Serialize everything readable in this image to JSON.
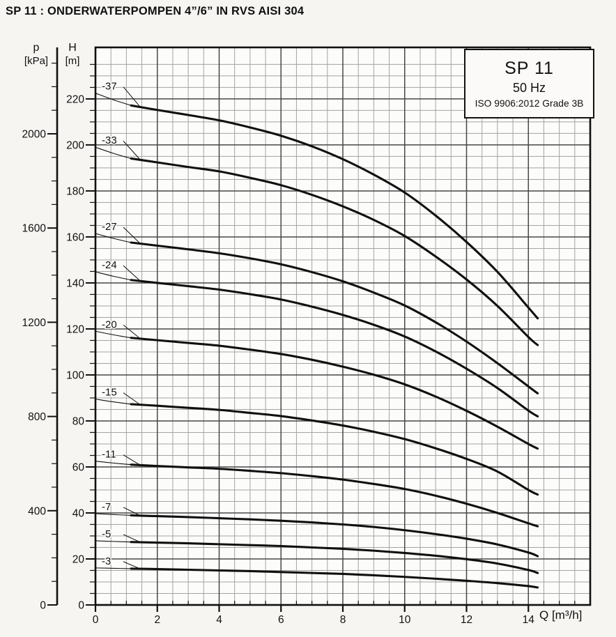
{
  "page": {
    "title": "SP 11 : ONDERWATERPOMPEN 4”/6” IN RVS AISI 304"
  },
  "legend": {
    "model": "SP 11",
    "frequency": "50 Hz",
    "standard": "ISO 9906:2012 Grade 3B"
  },
  "axes": {
    "pressure": {
      "symbol": "p",
      "unit": "[kPa]",
      "major_ticks": [
        0,
        400,
        800,
        1200,
        1600,
        2000
      ],
      "minor_step": 100,
      "minor_max": 2300
    },
    "head": {
      "symbol": "H",
      "unit": "[m]",
      "major_ticks": [
        0,
        20,
        40,
        60,
        80,
        100,
        120,
        140,
        160,
        180,
        200,
        220
      ],
      "minor_step": 5,
      "minor_max": 240
    },
    "flow": {
      "label": "Q [m³/h]",
      "major_ticks": [
        0,
        2,
        4,
        6,
        8,
        10,
        12,
        14
      ],
      "minor_step": 0.5,
      "max": 16
    }
  },
  "chart_data": {
    "type": "line",
    "title": "SP 11 submersible pump performance curves (head vs flow)",
    "xlabel": "Q [m³/h]",
    "ylabel": "H [m]",
    "ylabel_secondary": "p [kPa]",
    "xlim": [
      0,
      16
    ],
    "ylim": [
      0,
      242.4
    ],
    "grid": "on",
    "legend_position": "top-right box",
    "x": [
      0,
      1,
      2,
      3,
      4,
      5,
      6,
      7,
      8,
      9,
      10,
      11,
      12,
      13,
      14,
      14.3
    ],
    "series": [
      {
        "name": "-37",
        "values": [
          222.5,
          217.5,
          215.2,
          213.0,
          210.7,
          207.6,
          204.0,
          199.4,
          193.8,
          187.1,
          179.3,
          169.3,
          157.8,
          144.8,
          129.3,
          124.6
        ]
      },
      {
        "name": "-33",
        "values": [
          199.0,
          194.4,
          192.4,
          190.4,
          188.5,
          185.7,
          182.5,
          178.3,
          173.3,
          167.4,
          160.4,
          151.5,
          141.5,
          130.0,
          116.5,
          113.0
        ]
      },
      {
        "name": "-27",
        "values": [
          161.5,
          157.8,
          156.2,
          154.6,
          152.9,
          150.7,
          148.1,
          144.7,
          140.7,
          135.8,
          130.2,
          122.9,
          114.5,
          105.1,
          95.0,
          92.0
        ]
      },
      {
        "name": "-24",
        "values": [
          144.8,
          141.5,
          140.0,
          138.6,
          137.1,
          135.1,
          132.8,
          129.7,
          126.1,
          121.8,
          116.7,
          110.2,
          102.7,
          94.3,
          84.5,
          82.0
        ]
      },
      {
        "name": "-20",
        "values": [
          119.0,
          116.3,
          115.1,
          113.9,
          112.7,
          111.0,
          109.1,
          106.6,
          103.6,
          100.1,
          95.9,
          90.6,
          84.4,
          77.5,
          70.0,
          68.0
        ]
      },
      {
        "name": "-15",
        "values": [
          89.5,
          87.4,
          86.6,
          85.7,
          84.8,
          83.5,
          82.1,
          80.2,
          78.0,
          75.3,
          72.1,
          68.1,
          63.5,
          58.0,
          50.0,
          48.0
        ]
      },
      {
        "name": "-11",
        "values": [
          62.5,
          61.1,
          60.4,
          59.8,
          59.2,
          58.3,
          57.3,
          56.0,
          54.5,
          52.6,
          50.4,
          47.5,
          44.0,
          40.0,
          35.5,
          34.2
        ]
      },
      {
        "name": "-7",
        "values": [
          39.7,
          39.0,
          38.6,
          38.2,
          37.7,
          37.2,
          36.6,
          35.9,
          35.0,
          33.9,
          32.5,
          30.8,
          28.8,
          26.3,
          22.8,
          21.2
        ]
      },
      {
        "name": "-5",
        "values": [
          27.9,
          27.4,
          27.1,
          26.8,
          26.4,
          26.0,
          25.6,
          25.0,
          24.4,
          23.6,
          22.6,
          21.4,
          19.9,
          18.0,
          15.2,
          13.9
        ]
      },
      {
        "name": "-3",
        "values": [
          16.1,
          15.8,
          15.6,
          15.3,
          15.0,
          14.7,
          14.3,
          13.9,
          13.5,
          12.9,
          12.2,
          11.4,
          10.5,
          9.5,
          8.2,
          7.6
        ]
      }
    ]
  },
  "colors": {
    "curve": "#101010",
    "grid_minor": "#a3a3a3",
    "grid_major": "#474747",
    "axis": "#101010",
    "plot_background": "#fcfcfa",
    "page_background": "#f6f5f2"
  }
}
